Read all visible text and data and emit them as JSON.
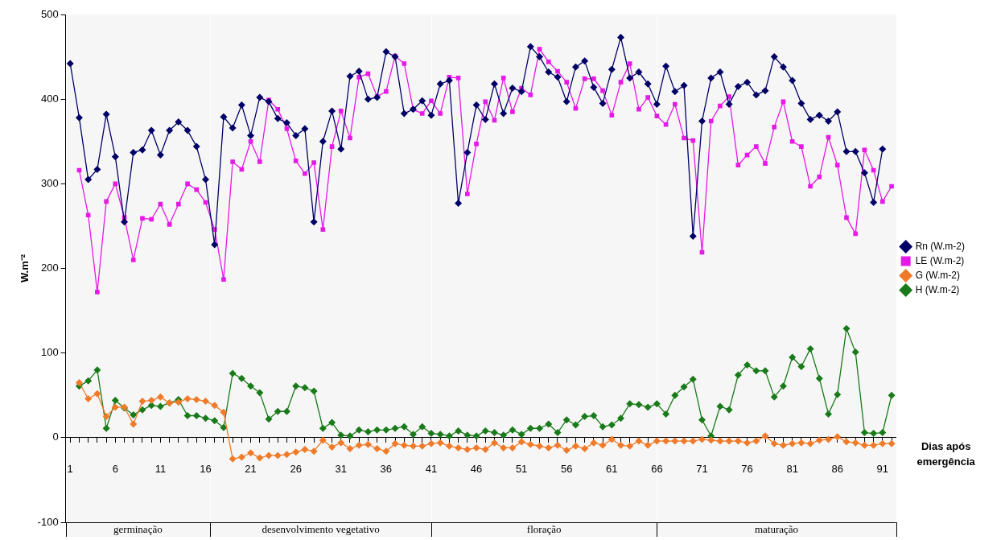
{
  "chart_data": {
    "type": "line",
    "xlabel": "Dias após emergência",
    "ylabel": "W.m⁻²",
    "x": [
      1,
      2,
      3,
      4,
      5,
      6,
      7,
      8,
      9,
      10,
      11,
      12,
      13,
      14,
      15,
      16,
      17,
      18,
      19,
      20,
      21,
      22,
      23,
      24,
      25,
      26,
      27,
      28,
      29,
      30,
      31,
      32,
      33,
      34,
      35,
      36,
      37,
      38,
      39,
      40,
      41,
      42,
      43,
      44,
      45,
      46,
      47,
      48,
      49,
      50,
      51,
      52,
      53,
      54,
      55,
      56,
      57,
      58,
      59,
      60,
      61,
      62,
      63,
      64,
      65,
      66,
      67,
      68,
      69,
      70,
      71,
      72,
      73,
      74,
      75,
      76,
      77,
      78,
      79,
      80,
      81,
      82,
      83,
      84,
      85,
      86,
      87,
      88,
      89,
      90,
      91,
      92
    ],
    "series": [
      {
        "name": "Rn (W.m-2)",
        "color": "#000066",
        "marker": "diamond",
        "values": [
          442,
          378,
          305,
          317,
          382,
          332,
          255,
          337,
          340,
          363,
          334,
          363,
          373,
          363,
          344,
          305,
          228,
          379,
          366,
          393,
          357,
          402,
          397,
          377,
          372,
          357,
          365,
          255,
          350,
          386,
          341,
          427,
          433,
          400,
          402,
          456,
          450,
          383,
          388,
          398,
          381,
          418,
          422,
          277,
          337,
          393,
          376,
          418,
          383,
          413,
          409,
          462,
          450,
          432,
          426,
          397,
          438,
          445,
          414,
          395,
          435,
          473,
          425,
          432,
          418,
          394,
          439,
          409,
          416,
          238,
          374,
          425,
          432,
          394,
          415,
          420,
          405,
          410,
          450,
          438,
          422,
          395,
          376,
          381,
          374,
          385,
          338,
          338,
          313,
          278,
          341,
          null
        ]
      },
      {
        "name": "LE (W.m-2)",
        "color": "#e619e6",
        "marker": "square",
        "values": [
          null,
          316,
          263,
          172,
          279,
          300,
          260,
          210,
          259,
          258,
          276,
          252,
          276,
          300,
          293,
          278,
          246,
          187,
          326,
          317,
          350,
          326,
          399,
          388,
          365,
          327,
          312,
          325,
          246,
          344,
          386,
          354,
          426,
          430,
          403,
          409,
          451,
          442,
          388,
          383,
          398,
          383,
          426,
          425,
          288,
          347,
          397,
          375,
          425,
          385,
          413,
          405,
          459,
          444,
          433,
          420,
          389,
          424,
          424,
          410,
          381,
          420,
          442,
          388,
          402,
          380,
          370,
          394,
          354,
          351,
          219,
          374,
          392,
          403,
          322,
          334,
          344,
          324,
          367,
          397,
          350,
          344,
          297,
          308,
          355,
          322,
          260,
          241,
          340,
          316,
          279,
          297
        ]
      },
      {
        "name": "G (W.m-2)",
        "color": "#f07a28",
        "marker": "diamond",
        "values": [
          null,
          65,
          46,
          52,
          25,
          36,
          36,
          16,
          43,
          44,
          48,
          41,
          42,
          46,
          45,
          43,
          38,
          30,
          -25,
          -23,
          -18,
          -24,
          -21,
          -21,
          -20,
          -17,
          -14,
          -16,
          -3,
          -11,
          -6,
          -13,
          -9,
          -8,
          -13,
          -16,
          -7,
          -9,
          -10,
          -10,
          -7,
          -6,
          -10,
          -12,
          -14,
          -12,
          -14,
          -6,
          -12,
          -12,
          -5,
          -8,
          -10,
          -12,
          -9,
          -15,
          -10,
          -13,
          -6,
          -9,
          -2,
          -9,
          -10,
          -4,
          -9,
          -4,
          -4,
          -4,
          -4,
          -4,
          -2,
          -3,
          -4,
          -4,
          -4,
          -6,
          -4,
          2,
          -7,
          -9,
          -7,
          -6,
          -7,
          -3,
          -2,
          1,
          -5,
          -6,
          -9,
          -9,
          -7,
          -7
        ]
      },
      {
        "name": "H (W.m-2)",
        "color": "#187a18",
        "marker": "diamond",
        "values": [
          null,
          61,
          67,
          80,
          11,
          44,
          35,
          27,
          33,
          38,
          37,
          41,
          45,
          26,
          26,
          23,
          20,
          12,
          76,
          70,
          61,
          53,
          22,
          31,
          31,
          61,
          59,
          55,
          11,
          18,
          3,
          2,
          9,
          7,
          9,
          9,
          11,
          13,
          4,
          13,
          5,
          4,
          2,
          8,
          3,
          2,
          8,
          6,
          3,
          9,
          4,
          11,
          11,
          16,
          6,
          21,
          15,
          25,
          26,
          13,
          15,
          23,
          40,
          39,
          36,
          40,
          28,
          50,
          60,
          69,
          21,
          2,
          37,
          33,
          74,
          86,
          79,
          79,
          48,
          61,
          95,
          84,
          105,
          70,
          28,
          51,
          129,
          101,
          6,
          5,
          6,
          50
        ]
      }
    ],
    "xlim": [
      0.5,
      92.5
    ],
    "xticks": [
      1,
      {
        "value": 2,
        "label": null
      },
      {
        "value": 3,
        "label": null
      },
      {
        "value": 4,
        "label": null
      },
      {
        "value": 5,
        "label": null
      },
      6,
      {
        "value": 7,
        "label": null
      },
      {
        "value": 8,
        "label": null
      },
      {
        "value": 9,
        "label": null
      },
      {
        "value": 10,
        "label": null
      },
      11,
      {
        "value": 12,
        "label": null
      },
      {
        "value": 13,
        "label": null
      },
      {
        "value": 14,
        "label": null
      },
      {
        "value": 15,
        "label": null
      },
      16,
      {
        "value": 17,
        "label": null
      },
      {
        "value": 18,
        "label": null
      },
      {
        "value": 19,
        "label": null
      },
      {
        "value": 20,
        "label": null
      },
      21,
      {
        "value": 22,
        "label": null
      },
      {
        "value": 23,
        "label": null
      },
      {
        "value": 24,
        "label": null
      },
      {
        "value": 25,
        "label": null
      },
      26,
      {
        "value": 27,
        "label": null
      },
      {
        "value": 28,
        "label": null
      },
      {
        "value": 29,
        "label": null
      },
      {
        "value": 30,
        "label": null
      },
      31,
      {
        "value": 32,
        "label": null
      },
      {
        "value": 33,
        "label": null
      },
      {
        "value": 34,
        "label": null
      },
      {
        "value": 35,
        "label": null
      },
      36,
      {
        "value": 37,
        "label": null
      },
      {
        "value": 38,
        "label": null
      },
      {
        "value": 39,
        "label": null
      },
      {
        "value": 40,
        "label": null
      },
      41,
      {
        "value": 42,
        "label": null
      },
      {
        "value": 43,
        "label": null
      },
      {
        "value": 44,
        "label": null
      },
      {
        "value": 45,
        "label": null
      },
      46,
      {
        "value": 47,
        "label": null
      },
      {
        "value": 48,
        "label": null
      },
      {
        "value": 49,
        "label": null
      },
      {
        "value": 50,
        "label": null
      },
      51,
      {
        "value": 52,
        "label": null
      },
      {
        "value": 53,
        "label": null
      },
      {
        "value": 54,
        "label": null
      },
      {
        "value": 55,
        "label": null
      },
      56,
      {
        "value": 57,
        "label": null
      },
      {
        "value": 58,
        "label": null
      },
      {
        "value": 59,
        "label": null
      },
      {
        "value": 60,
        "label": null
      },
      61,
      {
        "value": 62,
        "label": null
      },
      {
        "value": 63,
        "label": null
      },
      {
        "value": 64,
        "label": null
      },
      {
        "value": 65,
        "label": null
      },
      66,
      {
        "value": 67,
        "label": null
      },
      {
        "value": 68,
        "label": null
      },
      {
        "value": 69,
        "label": null
      },
      {
        "value": 70,
        "label": null
      },
      71,
      {
        "value": 72,
        "label": null
      },
      {
        "value": 73,
        "label": null
      },
      {
        "value": 74,
        "label": null
      },
      {
        "value": 75,
        "label": null
      },
      76,
      {
        "value": 77,
        "label": null
      },
      {
        "value": 78,
        "label": null
      },
      {
        "value": 79,
        "label": null
      },
      {
        "value": 80,
        "label": null
      },
      81,
      {
        "value": 82,
        "label": null
      },
      {
        "value": 83,
        "label": null
      },
      {
        "value": 84,
        "label": null
      },
      {
        "value": 85,
        "label": null
      },
      86,
      {
        "value": 87,
        "label": null
      },
      {
        "value": 88,
        "label": null
      },
      {
        "value": 89,
        "label": null
      },
      {
        "value": 90,
        "label": null
      },
      91,
      {
        "value": 92,
        "label": null
      }
    ],
    "ylim": [
      -100,
      500
    ],
    "yticks": [
      -100,
      0,
      100,
      200,
      300,
      400,
      500
    ],
    "bands": [
      {
        "axis": "x",
        "from": 0.5,
        "to": 16.5,
        "label": "germinação",
        "color": "#f6f6f6"
      },
      {
        "axis": "x",
        "from": 16.5,
        "to": 41,
        "label": "desenvolvimento vegetativo",
        "color": "#f6f6f6"
      },
      {
        "axis": "x",
        "from": 41,
        "to": 66,
        "label": "floração",
        "color": "#f6f6f6"
      },
      {
        "axis": "x",
        "from": 66,
        "to": 92.5,
        "label": "maturação",
        "color": "#f6f6f6"
      }
    ],
    "grid": false,
    "legend": "right",
    "line_style": "solid"
  }
}
